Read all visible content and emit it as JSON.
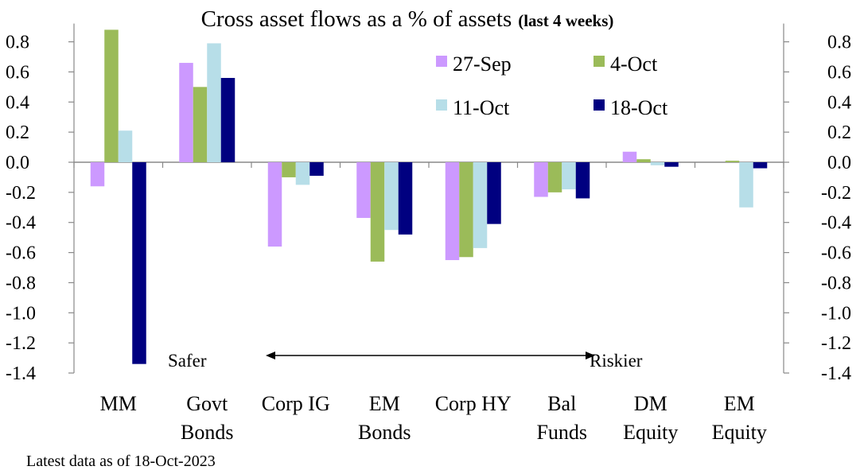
{
  "chart_data": {
    "type": "bar",
    "title": "Cross asset flows as a % of assets",
    "subtitle": "(last 4 weeks)",
    "categories": [
      [
        "MM"
      ],
      [
        "Govt",
        "Bonds"
      ],
      [
        "Corp IG"
      ],
      [
        "EM",
        "Bonds"
      ],
      [
        "Corp HY"
      ],
      [
        "Bal",
        "Funds"
      ],
      [
        "DM",
        "Equity"
      ],
      [
        "EM",
        "Equity"
      ]
    ],
    "series": [
      {
        "name": "27-Sep",
        "color": "#cc99ff",
        "values": [
          -0.16,
          0.66,
          -0.56,
          -0.37,
          -0.65,
          -0.23,
          0.07,
          0.0
        ]
      },
      {
        "name": "4-Oct",
        "color": "#9bbb59",
        "values": [
          0.88,
          0.5,
          -0.1,
          -0.66,
          -0.63,
          -0.2,
          0.02,
          0.01
        ]
      },
      {
        "name": "11-Oct",
        "color": "#b7dee8",
        "values": [
          0.21,
          0.79,
          -0.15,
          -0.45,
          -0.57,
          -0.18,
          -0.02,
          -0.3
        ]
      },
      {
        "name": "18-Oct",
        "color": "#000080",
        "values": [
          -1.34,
          0.56,
          -0.09,
          -0.48,
          -0.41,
          -0.24,
          -0.03,
          -0.04
        ]
      }
    ],
    "ylim": [
      -1.4,
      0.9
    ],
    "yticks": [
      "0.8",
      "0.6",
      "0.4",
      "0.2",
      "0.0",
      "-0.2",
      "-0.4",
      "-0.6",
      "-0.8",
      "-1.0",
      "-1.2",
      "-1.4"
    ],
    "ytick_values": [
      0.8,
      0.6,
      0.4,
      0.2,
      0.0,
      -0.2,
      -0.4,
      -0.6,
      -0.8,
      -1.0,
      -1.2,
      -1.4
    ],
    "legend_position": "top-right",
    "annotations": {
      "left": "Safer",
      "right": "Riskier"
    },
    "xlabel": "",
    "ylabel": ""
  },
  "footnote": "Latest data as of 18-Oct-2023"
}
